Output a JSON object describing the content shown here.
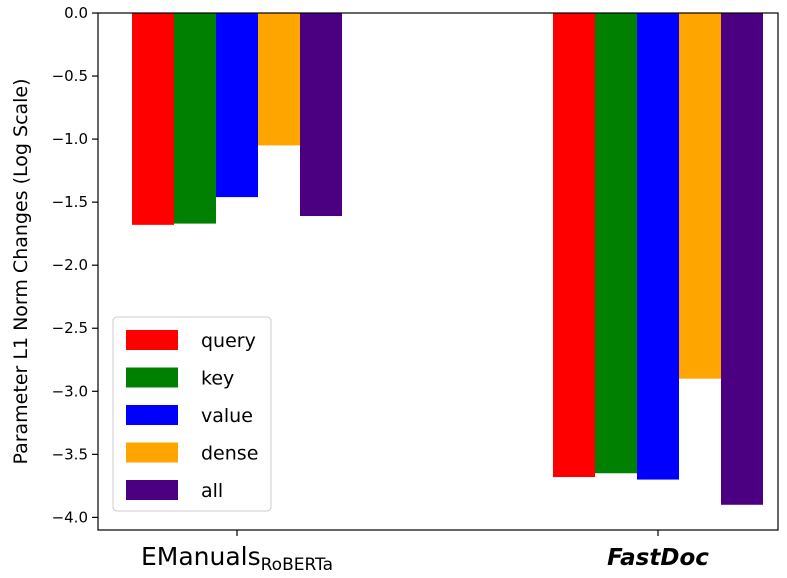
{
  "chart_data": {
    "type": "bar",
    "ylabel": "Parameter L1 Norm Changes (Log Scale)",
    "categories": [
      {
        "label": "EManuals",
        "subscript": "RoBERTa",
        "style": "normal"
      },
      {
        "label": "FastDoc",
        "subscript": "",
        "style": "bold-italic"
      }
    ],
    "series": [
      {
        "name": "query",
        "color": "#ff0000",
        "values": [
          -1.68,
          -3.68
        ]
      },
      {
        "name": "key",
        "color": "#008000",
        "values": [
          -1.67,
          -3.65
        ]
      },
      {
        "name": "value",
        "color": "#0000ff",
        "values": [
          -1.46,
          -3.7
        ]
      },
      {
        "name": "dense",
        "color": "#ffa500",
        "values": [
          -1.05,
          -2.9
        ]
      },
      {
        "name": "all",
        "color": "#4b0082",
        "values": [
          -1.61,
          -3.9
        ]
      }
    ],
    "ylim": [
      -4.1,
      0.0
    ],
    "yticks": [
      0.0,
      -0.5,
      -1.0,
      -1.5,
      -2.0,
      -2.5,
      -3.0,
      -3.5,
      -4.0
    ],
    "ytick_labels": [
      "0.0",
      "−0.5",
      "−1.0",
      "−1.5",
      "−2.0",
      "−2.5",
      "−3.0",
      "−3.5",
      "−4.0"
    ],
    "grid": false,
    "legend_position": "lower-left"
  }
}
